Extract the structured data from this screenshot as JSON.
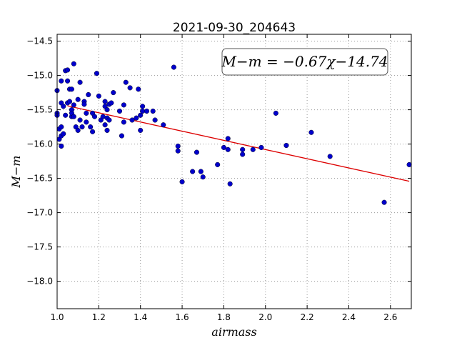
{
  "chart_data": {
    "type": "scatter",
    "title": "2021-09-30_204643",
    "xlabel": "airmass",
    "ylabel": "M−m",
    "xlim": [
      1.0,
      2.7
    ],
    "ylim": [
      -18.4,
      -14.4
    ],
    "y_inverted": true,
    "grid": true,
    "xticks": [
      1.0,
      1.2,
      1.4,
      1.6,
      1.8,
      2.0,
      2.2,
      2.4,
      2.6
    ],
    "xtick_labels": [
      "1.0",
      "1.2",
      "1.4",
      "1.6",
      "1.8",
      "2.0",
      "2.2",
      "2.4",
      "2.6"
    ],
    "yticks": [
      -14.5,
      -15.0,
      -15.5,
      -16.0,
      -16.5,
      -17.0,
      -17.5,
      -18.0
    ],
    "ytick_labels": [
      "−14.5",
      "−15.0",
      "−15.5",
      "−16.0",
      "−16.5",
      "−17.0",
      "−17.5",
      "−18.0"
    ],
    "annotation": "M−m = −0.67χ−14.74",
    "colors": {
      "points": "#0000cc",
      "fit": "#dd0000",
      "grid": "#999999"
    },
    "fit": {
      "slope": -0.67,
      "intercept": -14.74,
      "x_range": [
        1.05,
        2.69
      ]
    },
    "points": [
      [
        1.0,
        -15.22
      ],
      [
        1.0,
        -15.55
      ],
      [
        1.0,
        -15.58
      ],
      [
        1.01,
        -15.78
      ],
      [
        1.01,
        -15.93
      ],
      [
        1.02,
        -15.4
      ],
      [
        1.02,
        -15.75
      ],
      [
        1.02,
        -15.88
      ],
      [
        1.02,
        -16.03
      ],
      [
        1.02,
        -15.08
      ],
      [
        1.03,
        -15.85
      ],
      [
        1.03,
        -15.45
      ],
      [
        1.04,
        -14.93
      ],
      [
        1.04,
        -15.58
      ],
      [
        1.05,
        -14.92
      ],
      [
        1.05,
        -15.08
      ],
      [
        1.05,
        -15.4
      ],
      [
        1.06,
        -15.2
      ],
      [
        1.06,
        -15.38
      ],
      [
        1.07,
        -15.5
      ],
      [
        1.07,
        -15.6
      ],
      [
        1.07,
        -15.55
      ],
      [
        1.07,
        -15.2
      ],
      [
        1.08,
        -14.83
      ],
      [
        1.08,
        -15.43
      ],
      [
        1.08,
        -15.6
      ],
      [
        1.09,
        -15.75
      ],
      [
        1.1,
        -15.35
      ],
      [
        1.1,
        -15.8
      ],
      [
        1.11,
        -15.1
      ],
      [
        1.11,
        -15.65
      ],
      [
        1.12,
        -15.75
      ],
      [
        1.13,
        -15.38
      ],
      [
        1.13,
        -15.42
      ],
      [
        1.14,
        -15.55
      ],
      [
        1.14,
        -15.68
      ],
      [
        1.15,
        -15.28
      ],
      [
        1.16,
        -15.75
      ],
      [
        1.17,
        -15.55
      ],
      [
        1.17,
        -15.82
      ],
      [
        1.18,
        -15.6
      ],
      [
        1.19,
        -14.97
      ],
      [
        1.2,
        -15.3
      ],
      [
        1.21,
        -15.65
      ],
      [
        1.22,
        -15.6
      ],
      [
        1.23,
        -15.45
      ],
      [
        1.23,
        -15.38
      ],
      [
        1.23,
        -15.72
      ],
      [
        1.24,
        -15.62
      ],
      [
        1.24,
        -15.8
      ],
      [
        1.24,
        -15.5
      ],
      [
        1.25,
        -15.42
      ],
      [
        1.25,
        -15.65
      ],
      [
        1.26,
        -15.4
      ],
      [
        1.27,
        -15.25
      ],
      [
        1.3,
        -15.52
      ],
      [
        1.31,
        -15.88
      ],
      [
        1.32,
        -15.43
      ],
      [
        1.32,
        -15.68
      ],
      [
        1.33,
        -15.1
      ],
      [
        1.35,
        -15.18
      ],
      [
        1.36,
        -15.65
      ],
      [
        1.38,
        -15.62
      ],
      [
        1.39,
        -15.2
      ],
      [
        1.4,
        -15.8
      ],
      [
        1.4,
        -15.58
      ],
      [
        1.41,
        -15.45
      ],
      [
        1.41,
        -15.52
      ],
      [
        1.43,
        -15.52
      ],
      [
        1.46,
        -15.52
      ],
      [
        1.47,
        -15.65
      ],
      [
        1.51,
        -15.72
      ],
      [
        1.56,
        -14.88
      ],
      [
        1.58,
        -16.03
      ],
      [
        1.58,
        -16.1
      ],
      [
        1.6,
        -16.55
      ],
      [
        1.65,
        -16.4
      ],
      [
        1.67,
        -16.12
      ],
      [
        1.69,
        -16.4
      ],
      [
        1.7,
        -16.48
      ],
      [
        1.77,
        -16.3
      ],
      [
        1.8,
        -16.05
      ],
      [
        1.82,
        -15.92
      ],
      [
        1.82,
        -16.08
      ],
      [
        1.83,
        -16.58
      ],
      [
        1.89,
        -16.08
      ],
      [
        1.89,
        -16.15
      ],
      [
        1.94,
        -16.08
      ],
      [
        1.98,
        -16.05
      ],
      [
        2.05,
        -15.55
      ],
      [
        2.1,
        -16.02
      ],
      [
        2.22,
        -15.83
      ],
      [
        2.31,
        -16.18
      ],
      [
        2.57,
        -16.85
      ],
      [
        2.69,
        -16.3
      ]
    ]
  }
}
